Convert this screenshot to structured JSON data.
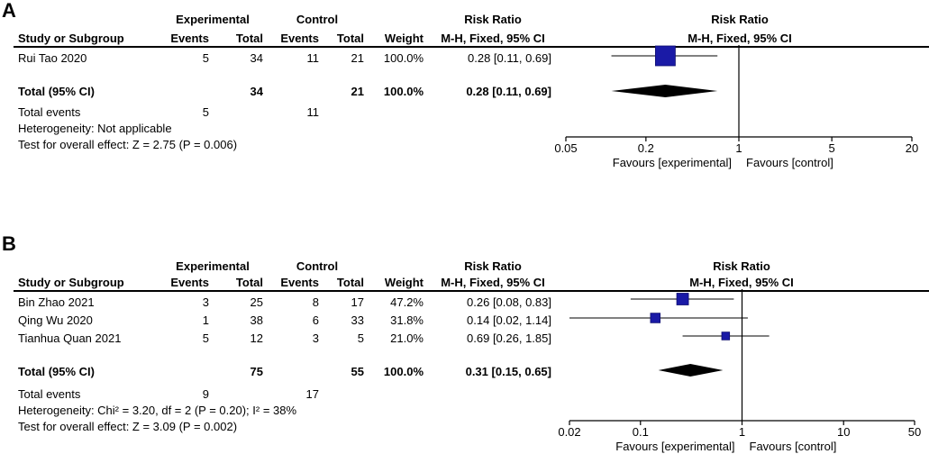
{
  "chart_data": [
    {
      "type": "forest",
      "panel_label": "A",
      "headers": {
        "experimental": "Experimental",
        "control": "Control",
        "risk_ratio": "Risk Ratio",
        "study": "Study or Subgroup",
        "events": "Events",
        "total": "Total",
        "weight": "Weight",
        "method": "M-H, Fixed, 95% CI"
      },
      "studies": [
        {
          "name": "Rui Tao 2020",
          "exp_events": "5",
          "exp_total": "34",
          "ctrl_events": "11",
          "ctrl_total": "21",
          "weight": "100.0%",
          "ci_text": "0.28 [0.11, 0.69]",
          "rr": 0.28,
          "lower": 0.11,
          "upper": 0.69,
          "weight_value": 100.0
        }
      ],
      "total": {
        "label": "Total (95% CI)",
        "exp_total": "34",
        "ctrl_total": "21",
        "weight": "100.0%",
        "ci_text": "0.28 [0.11, 0.69]",
        "rr": 0.28,
        "lower": 0.11,
        "upper": 0.69
      },
      "total_events": {
        "label": "Total events",
        "exp": "5",
        "ctrl": "11"
      },
      "heterogeneity": "Heterogeneity: Not applicable",
      "overall_effect": "Test for overall effect: Z = 2.75 (P = 0.006)",
      "plot_title": "Risk Ratio",
      "plot_subtitle": "M-H, Fixed, 95% CI",
      "axis": {
        "scale": "log",
        "min": 0.05,
        "max": 20,
        "ticks": [
          0.05,
          0.2,
          1,
          5,
          20
        ],
        "tick_labels": [
          "0.05",
          "0.2",
          "1",
          "5",
          "20"
        ]
      },
      "favours_left": "Favours [experimental]",
      "favours_right": "Favours [control]"
    },
    {
      "type": "forest",
      "panel_label": "B",
      "headers": {
        "experimental": "Experimental",
        "control": "Control",
        "risk_ratio": "Risk Ratio",
        "study": "Study or Subgroup",
        "events": "Events",
        "total": "Total",
        "weight": "Weight",
        "method": "M-H, Fixed, 95% CI"
      },
      "studies": [
        {
          "name": "Bin Zhao 2021",
          "exp_events": "3",
          "exp_total": "25",
          "ctrl_events": "8",
          "ctrl_total": "17",
          "weight": "47.2%",
          "ci_text": "0.26 [0.08, 0.83]",
          "rr": 0.26,
          "lower": 0.08,
          "upper": 0.83,
          "weight_value": 47.2
        },
        {
          "name": "Qing Wu 2020",
          "exp_events": "1",
          "exp_total": "38",
          "ctrl_events": "6",
          "ctrl_total": "33",
          "weight": "31.8%",
          "ci_text": "0.14 [0.02, 1.14]",
          "rr": 0.14,
          "lower": 0.02,
          "upper": 1.14,
          "weight_value": 31.8
        },
        {
          "name": "Tianhua Quan 2021",
          "exp_events": "5",
          "exp_total": "12",
          "ctrl_events": "3",
          "ctrl_total": "5",
          "weight": "21.0%",
          "ci_text": "0.69 [0.26, 1.85]",
          "rr": 0.69,
          "lower": 0.26,
          "upper": 1.85,
          "weight_value": 21.0
        }
      ],
      "total": {
        "label": "Total (95% CI)",
        "exp_total": "75",
        "ctrl_total": "55",
        "weight": "100.0%",
        "ci_text": "0.31 [0.15, 0.65]",
        "rr": 0.31,
        "lower": 0.15,
        "upper": 0.65
      },
      "total_events": {
        "label": "Total events",
        "exp": "9",
        "ctrl": "17"
      },
      "heterogeneity": "Heterogeneity: Chi² = 3.20, df = 2 (P = 0.20); I² = 38%",
      "overall_effect": "Test for overall effect: Z = 3.09 (P = 0.002)",
      "plot_title": "Risk Ratio",
      "plot_subtitle": "M-H, Fixed, 95% CI",
      "axis": {
        "scale": "log",
        "min": 0.02,
        "max": 50,
        "ticks": [
          0.02,
          0.1,
          1,
          10,
          50
        ],
        "tick_labels": [
          "0.02",
          "0.1",
          "1",
          "10",
          "50"
        ]
      },
      "favours_left": "Favours [experimental]",
      "favours_right": "Favours [control]"
    }
  ],
  "colors": {
    "marker": "#1a1aa6",
    "marker_stroke": "#0d0d70",
    "diamond": "#000000"
  }
}
